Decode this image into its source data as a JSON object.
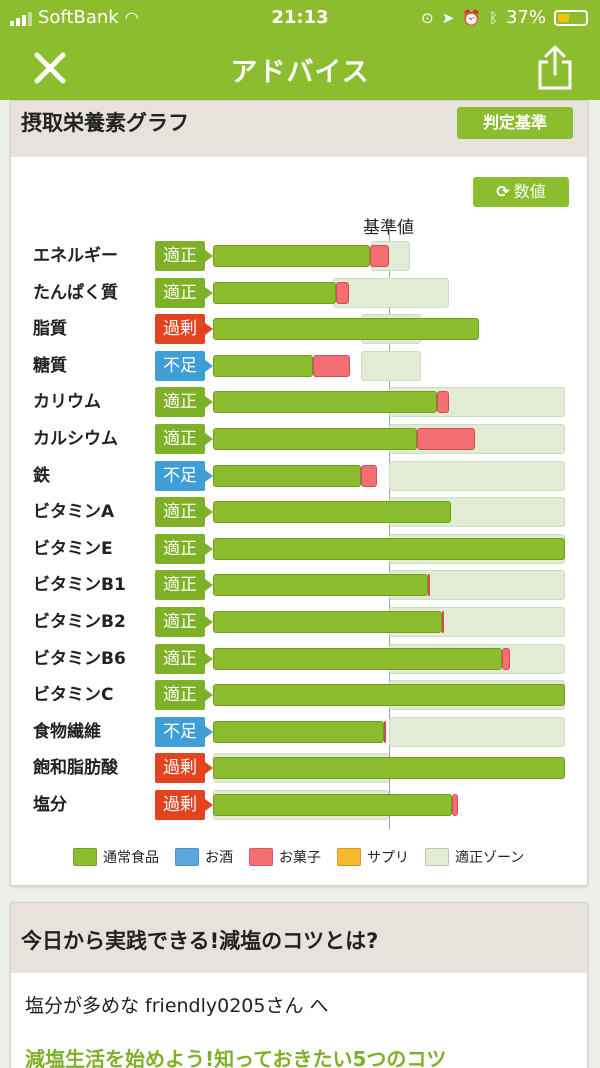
{
  "status_bar": {
    "carrier": "SoftBank",
    "time": "21:13",
    "battery": "37%"
  },
  "nav": {
    "title": "アドバイス",
    "close_icon": "close-icon",
    "share_icon": "share-icon"
  },
  "nutrient_card": {
    "title": "摂取栄養素グラフ",
    "criteria_button": "判定基準",
    "values_button": "数値",
    "reference_label": "基準値"
  },
  "colors": {
    "accent": "#8cbd2e",
    "normal_food": "#8cbd2e",
    "alcohol": "#5ba8e0",
    "sweets": "#f46f74",
    "supplement": "#f5b82e",
    "zone": "#e2ecd5",
    "status_ok": "#7fb128",
    "status_over": "#e3431f",
    "status_under": "#3f9ed6"
  },
  "chart_data": {
    "type": "bar",
    "stacked": true,
    "orientation": "horizontal",
    "reference_value_pct": 100,
    "x_unit": "% of 基準値",
    "categories": [
      "エネルギー",
      "たんぱく質",
      "脂質",
      "糖質",
      "カリウム",
      "カルシウム",
      "鉄",
      "ビタミンA",
      "ビタミンE",
      "ビタミンB1",
      "ビタミンB2",
      "ビタミンB6",
      "ビタミンC",
      "食物繊維",
      "飽和脂肪酸",
      "塩分"
    ],
    "status": [
      "適正",
      "適正",
      "過剰",
      "不足",
      "適正",
      "適正",
      "不足",
      "適正",
      "適正",
      "適正",
      "適正",
      "適正",
      "適正",
      "不足",
      "過剰",
      "過剰"
    ],
    "series": [
      {
        "name": "通常食品",
        "values": [
          89,
          70,
          151,
          57,
          127,
          116,
          84,
          135,
          200,
          122,
          130,
          164,
          200,
          97,
          200,
          136
        ]
      },
      {
        "name": "お酒",
        "values": [
          0,
          0,
          0,
          0,
          0,
          0,
          0,
          0,
          0,
          0,
          0,
          0,
          0,
          0,
          0,
          0
        ]
      },
      {
        "name": "お菓子",
        "values": [
          11,
          7,
          0,
          21,
          7,
          33,
          9,
          0,
          0,
          1,
          1,
          5,
          0,
          1,
          0,
          3
        ]
      },
      {
        "name": "サプリ",
        "values": [
          0,
          0,
          0,
          0,
          0,
          0,
          0,
          0,
          0,
          0,
          0,
          0,
          0,
          0,
          0,
          0
        ]
      }
    ],
    "zone": [
      [
        90,
        112
      ],
      [
        68,
        134
      ],
      [
        84,
        118
      ],
      [
        84,
        118
      ],
      [
        100,
        200
      ],
      [
        100,
        200
      ],
      [
        100,
        200
      ],
      [
        100,
        200
      ],
      [
        100,
        200
      ],
      [
        100,
        200
      ],
      [
        100,
        200
      ],
      [
        100,
        200
      ],
      [
        100,
        200
      ],
      [
        100,
        200
      ],
      [
        0,
        100
      ],
      [
        0,
        100
      ]
    ],
    "legend": [
      "通常食品",
      "お酒",
      "お菓子",
      "サプリ",
      "適正ゾーン"
    ],
    "xlim": [
      0,
      200
    ]
  },
  "article_card": {
    "title": "今日から実践できる!減塩のコツとは?",
    "greeting": "塩分が多めな friendly0205さん へ",
    "link": "減塩生活を始めよう!知っておきたい5つのコツ"
  }
}
